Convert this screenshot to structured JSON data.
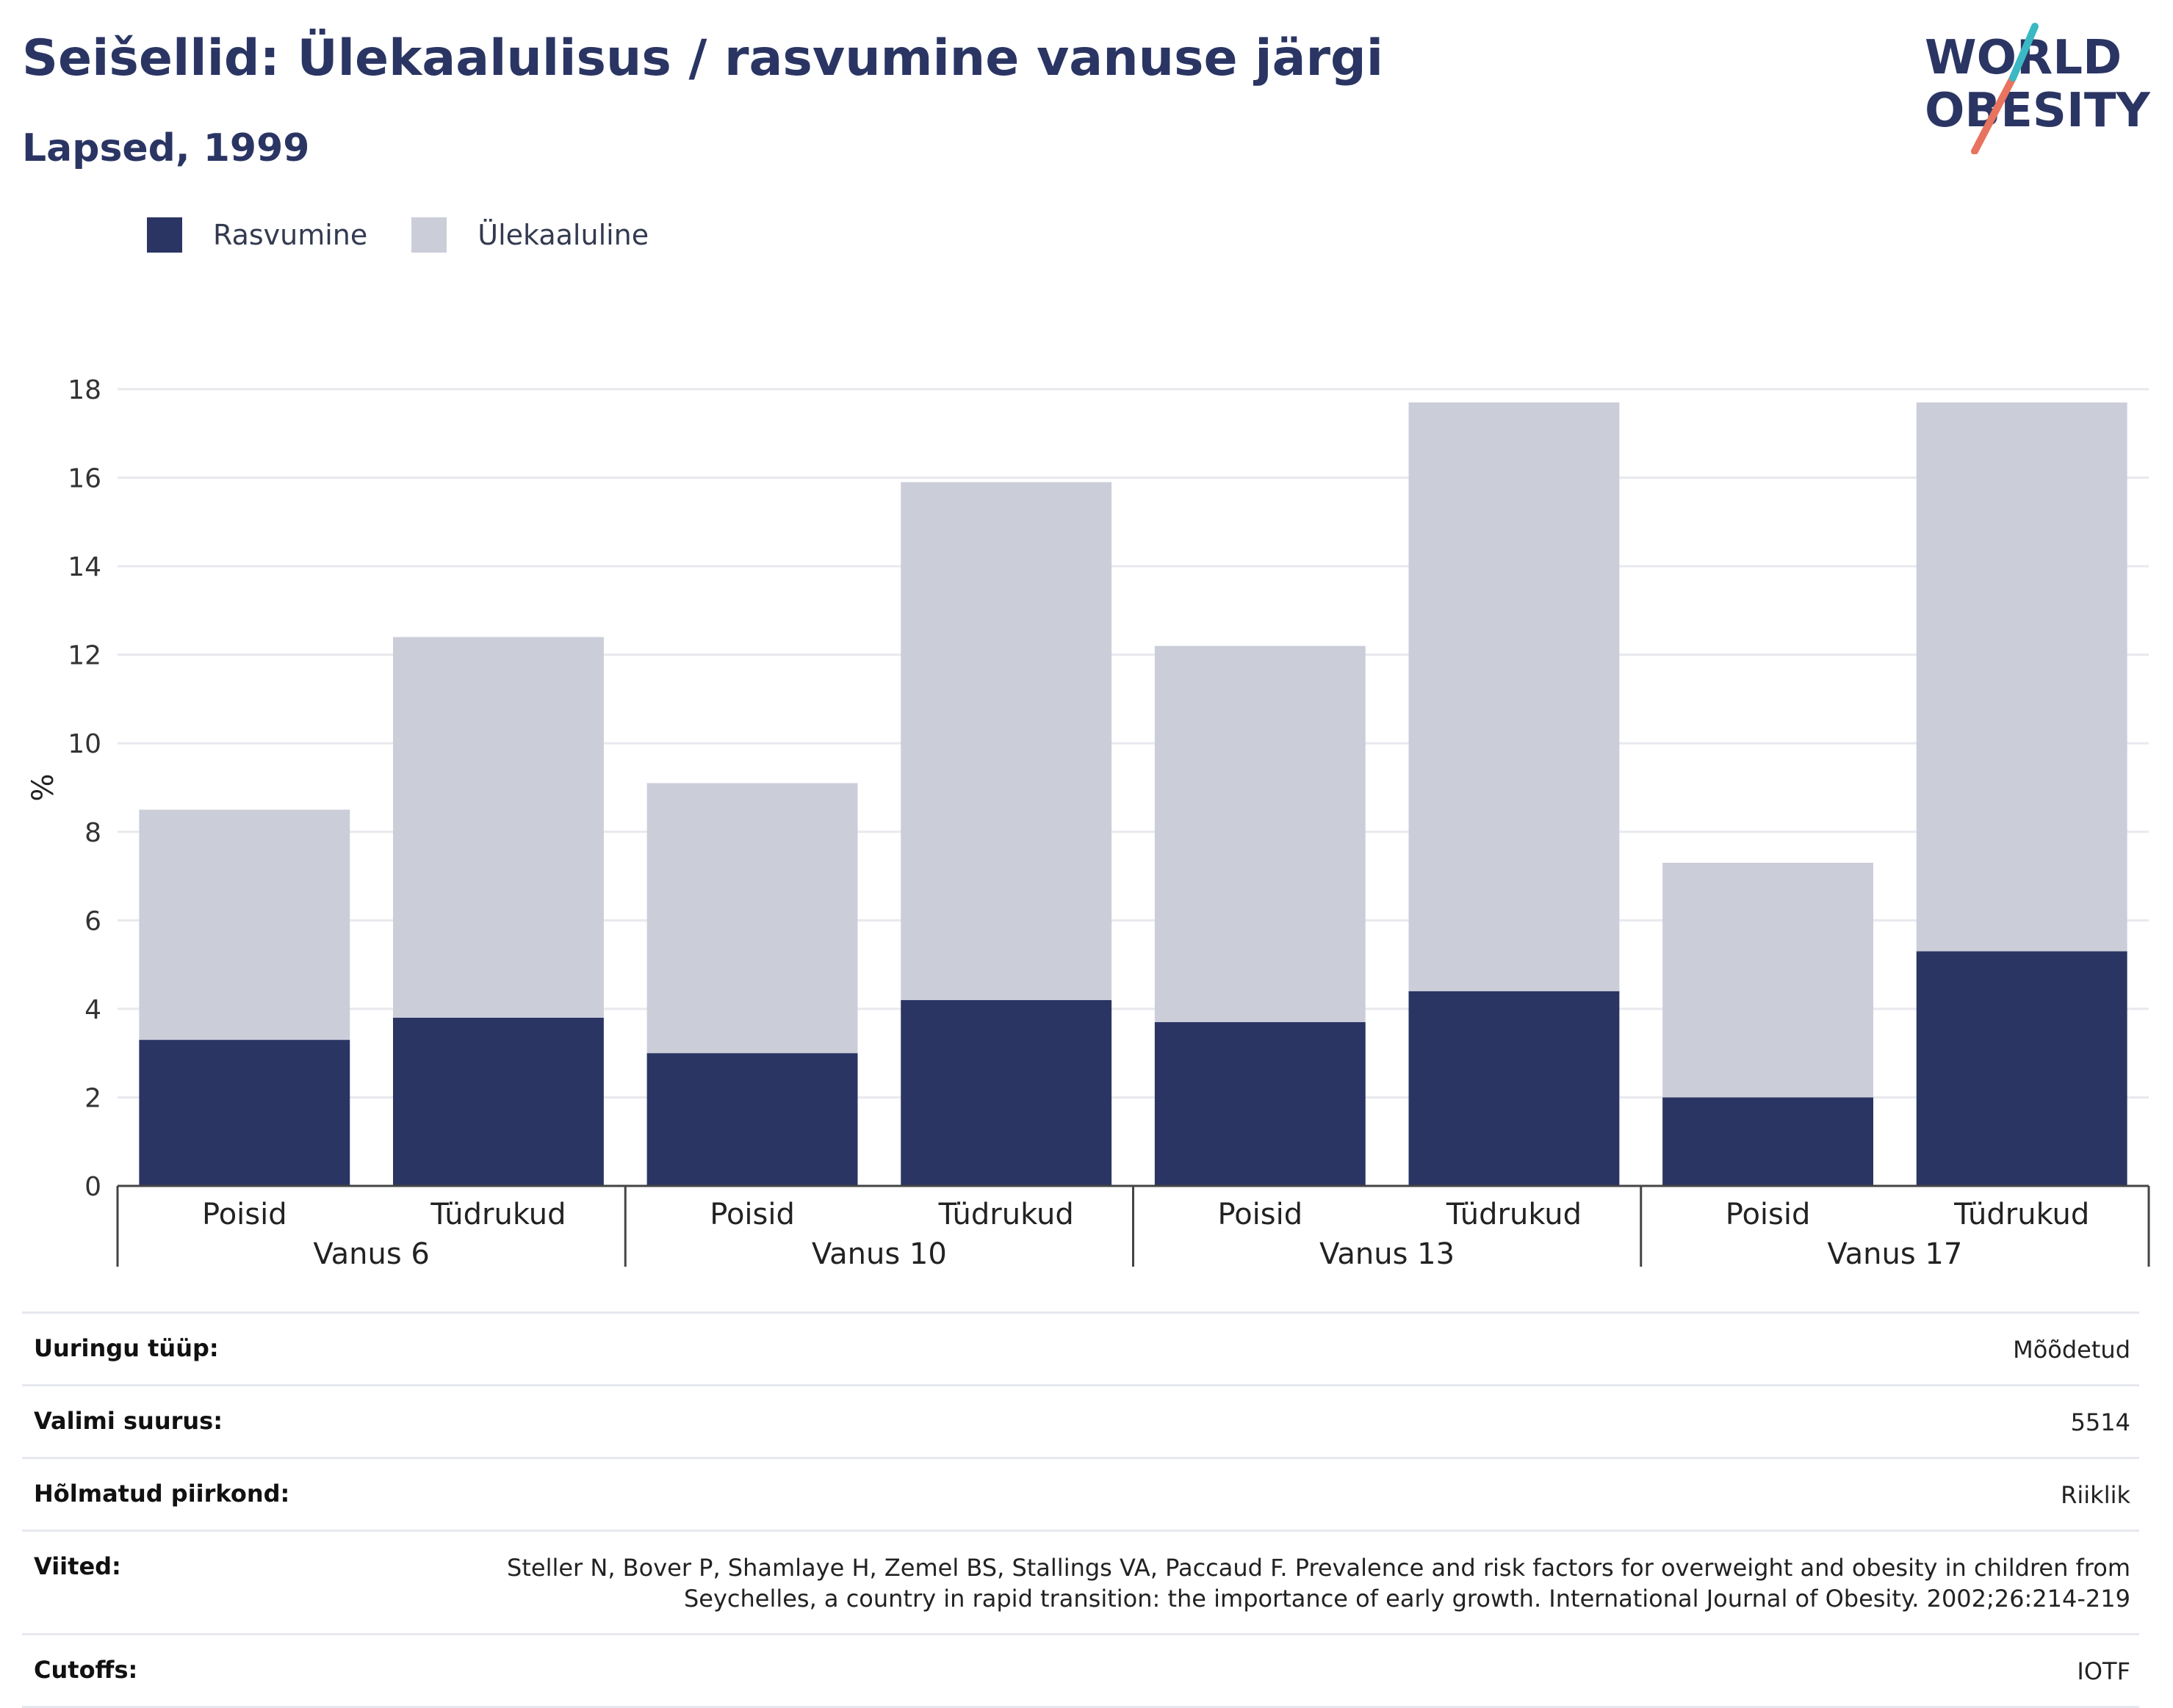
{
  "header": {
    "title": "Seišellid: Ülekaalulisus / rasvumine vanuse järgi",
    "subtitle": "Lapsed, 1999"
  },
  "logo": {
    "line1": "WORLD",
    "line2": "OBESITY"
  },
  "colors": {
    "obesity": "#2a3563",
    "overweight": "#cbcdd9",
    "accent_teal": "#3bb8c3",
    "accent_red": "#e8735f"
  },
  "legend": [
    {
      "label": "Rasvumine",
      "color": "#2a3563"
    },
    {
      "label": "Ülekaaluline",
      "color": "#cbcdd9"
    }
  ],
  "chart_data": {
    "type": "bar",
    "stacked": true,
    "ylabel": "%",
    "ylim": [
      0,
      18
    ],
    "yticks": [
      0,
      2,
      4,
      6,
      8,
      10,
      12,
      14,
      16,
      18
    ],
    "grid": true,
    "legend_position": "top-left",
    "groups": [
      "Vanus 6",
      "Vanus 10",
      "Vanus 13",
      "Vanus 17"
    ],
    "categories": [
      "Poisid",
      "Tüdrukud",
      "Poisid",
      "Tüdrukud",
      "Poisid",
      "Tüdrukud",
      "Poisid",
      "Tüdrukud"
    ],
    "series": [
      {
        "name": "Rasvumine",
        "values": [
          3.3,
          3.8,
          3.0,
          4.2,
          3.7,
          4.4,
          2.0,
          5.3
        ]
      },
      {
        "name": "Ülekaaluline",
        "values": [
          5.2,
          8.6,
          6.1,
          11.7,
          8.5,
          13.3,
          5.3,
          12.4
        ]
      }
    ]
  },
  "info": [
    {
      "label": "Uuringu tüüp:",
      "value": "Mõõdetud"
    },
    {
      "label": "Valimi suurus:",
      "value": "5514"
    },
    {
      "label": "Hõlmatud piirkond:",
      "value": "Riiklik"
    },
    {
      "label": "Viited:",
      "value": "Steller N, Bover P, Shamlaye H, Zemel BS, Stallings VA, Paccaud F. Prevalence and risk factors for overweight and obesity in children from Seychelles, a country in rapid transition: the importance of early growth. International Journal of Obesity. 2002;26:214-219"
    },
    {
      "label": "Cutoffs:",
      "value": "IOTF"
    }
  ]
}
